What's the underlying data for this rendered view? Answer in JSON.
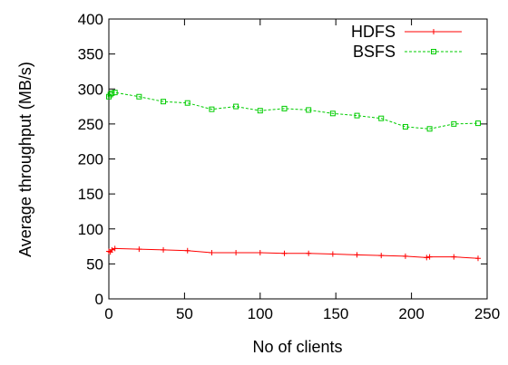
{
  "chart_data": {
    "type": "line",
    "title": "",
    "xlabel": "No of clients",
    "ylabel": "Average throughput (MB/s)",
    "xlim": [
      0,
      250
    ],
    "ylim": [
      0,
      400
    ],
    "xticks": [
      "0",
      "50",
      "100",
      "150",
      "200",
      "250"
    ],
    "yticks": [
      "0",
      "50",
      "100",
      "150",
      "200",
      "250",
      "300",
      "350",
      "400"
    ],
    "grid": false,
    "legend_position": "top-right",
    "series": [
      {
        "name": "HDFS",
        "color": "#ff0000",
        "marker": "plus",
        "line_style": "solid",
        "x": [
          0,
          1,
          2,
          4,
          20,
          36,
          52,
          68,
          84,
          100,
          116,
          132,
          148,
          164,
          180,
          196,
          210,
          212,
          228,
          244
        ],
        "y": [
          68,
          67,
          70,
          72,
          71,
          70,
          69,
          66,
          66,
          66,
          65,
          65,
          64,
          63,
          62,
          61,
          59,
          60,
          60,
          58
        ]
      },
      {
        "name": "BSFS",
        "color": "#00cc00",
        "marker": "square",
        "line_style": "dashed",
        "x": [
          0,
          1,
          2,
          4,
          20,
          36,
          52,
          68,
          84,
          100,
          116,
          132,
          148,
          164,
          180,
          196,
          212,
          228,
          244
        ],
        "y": [
          289,
          292,
          294,
          295,
          289,
          282,
          280,
          271,
          275,
          269,
          272,
          270,
          265,
          262,
          258,
          246,
          243,
          250,
          251
        ]
      }
    ]
  }
}
